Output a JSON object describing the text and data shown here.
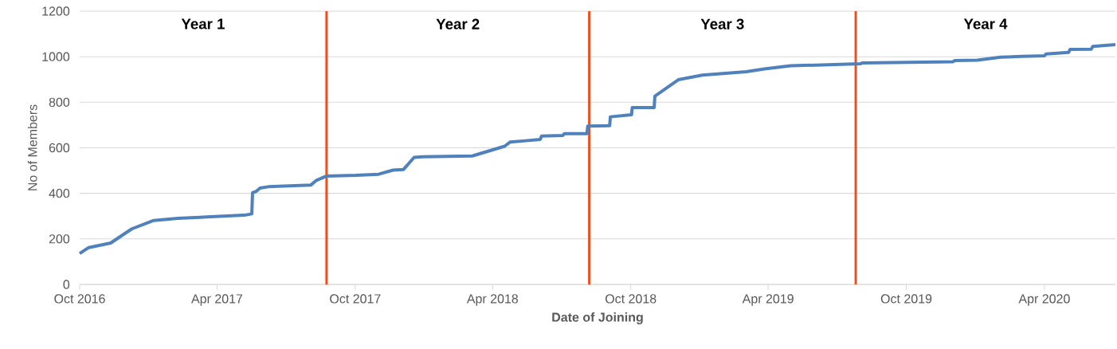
{
  "chart_data": {
    "type": "line",
    "xlabel": "Date of Joining",
    "ylabel": "No of Members",
    "x": [
      "2016-10-01",
      "2016-10-13",
      "2016-11-11",
      "2016-12-09",
      "2017-01-07",
      "2017-02-08",
      "2017-05-07",
      "2017-05-17",
      "2017-05-18",
      "2017-05-23",
      "2017-05-28",
      "2017-06-08",
      "2017-08-03",
      "2017-08-10",
      "2017-08-24",
      "2017-10-02",
      "2017-11-01",
      "2017-11-20",
      "2017-12-04",
      "2017-12-18",
      "2017-12-29",
      "2018-03-05",
      "2018-04-17",
      "2018-04-24",
      "2018-05-15",
      "2018-06-03",
      "2018-06-05",
      "2018-07-03",
      "2018-07-05",
      "2018-08-04",
      "2018-08-05",
      "2018-09-03",
      "2018-09-04",
      "2018-10-02",
      "2018-10-03",
      "2018-11-01",
      "2018-11-02",
      "2018-12-03",
      "2019-01-04",
      "2019-03-03",
      "2019-03-27",
      "2019-05-01",
      "2019-08-01",
      "2019-08-04",
      "2019-12-02",
      "2019-12-04",
      "2020-01-03",
      "2020-02-03",
      "2020-03-02",
      "2020-04-01",
      "2020-04-03",
      "2020-05-03",
      "2020-05-05",
      "2020-06-02",
      "2020-06-04",
      "2020-07-04"
    ],
    "series": [
      {
        "color": "#4f81bd",
        "values": [
          136,
          162,
          182,
          244,
          281,
          290,
          304,
          310,
          403,
          409,
          423,
          429,
          436,
          456,
          476,
          479,
          484,
          502,
          505,
          558,
          561,
          564,
          607,
          625,
          631,
          637,
          652,
          654,
          662,
          662,
          695,
          697,
          736,
          745,
          777,
          777,
          827,
          899,
          919,
          934,
          946,
          960,
          969,
          973,
          978,
          983,
          985,
          998,
          1001,
          1004,
          1012,
          1019,
          1032,
          1033,
          1045,
          1053
        ]
      }
    ],
    "xlim": [
      "2016-10-01",
      "2020-07-04"
    ],
    "xticks": [
      {
        "value": "2016-10-01",
        "label": "Oct 2016"
      },
      {
        "value": "2017-04-01",
        "label": "Apr 2017"
      },
      {
        "value": "2017-10-01",
        "label": "Oct 2017"
      },
      {
        "value": "2018-04-01",
        "label": "Apr 2018"
      },
      {
        "value": "2018-10-01",
        "label": "Oct 2018"
      },
      {
        "value": "2019-04-01",
        "label": "Apr 2019"
      },
      {
        "value": "2019-10-01",
        "label": "Oct 2019"
      },
      {
        "value": "2020-04-01",
        "label": "Apr 2020"
      }
    ],
    "ylim": [
      0,
      1200
    ],
    "yticks": [
      0,
      200,
      400,
      600,
      800,
      1000,
      1200
    ],
    "grid": "y",
    "marker": "none",
    "line_style": "solid",
    "ref_lines": [
      {
        "axis": "x",
        "value": "2017-08-24",
        "color": "#f04e1e"
      },
      {
        "axis": "x",
        "value": "2018-08-07",
        "color": "#f04e1e"
      },
      {
        "axis": "x",
        "value": "2019-07-26",
        "color": "#f04e1e"
      }
    ],
    "annotations": [
      "Year 1",
      "Year 2",
      "Year 3",
      "Year 4"
    ]
  }
}
